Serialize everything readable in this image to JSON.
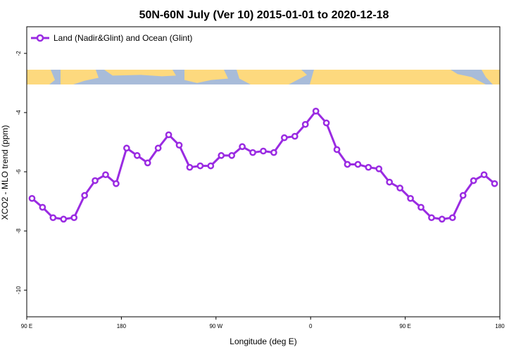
{
  "chart_data": {
    "type": "line",
    "title": "50N-60N July (Ver 10)   2015-01-01 to 2020-12-18",
    "xlabel": "Longitude (deg E)",
    "ylabel": "XCO2 - MLO trend (ppm)",
    "x_ticks": [
      {
        "value": 90,
        "label": "90 E"
      },
      {
        "value": 180,
        "label": "180"
      },
      {
        "value": 270,
        "label": "90 W"
      },
      {
        "value": 360,
        "label": "0"
      },
      {
        "value": 450,
        "label": "90 E"
      },
      {
        "value": 540,
        "label": "180"
      }
    ],
    "y_ticks": [
      {
        "value": -2,
        "label": "-2"
      },
      {
        "value": -4,
        "label": "-4"
      },
      {
        "value": -6,
        "label": "-6"
      },
      {
        "value": -8,
        "label": "-8"
      },
      {
        "value": -10,
        "label": "-10"
      }
    ],
    "xlim": [
      90,
      540
    ],
    "ylim": [
      -10.9,
      -1.1
    ],
    "grid": false,
    "legend_position": "top-left",
    "map_strip": {
      "y_top": -2.55,
      "y_bottom": -3.05,
      "ocean_color": "#a8bcd9",
      "land_color": "#fdd97e"
    },
    "series": [
      {
        "name": "Land (Nadir&Glint) and Ocean (Glint)",
        "color": "#9a2be2",
        "x": [
          95,
          105,
          115,
          125,
          135,
          145,
          155,
          165,
          175,
          185,
          195,
          205,
          215,
          225,
          235,
          245,
          255,
          265,
          275,
          285,
          295,
          305,
          315,
          325,
          335,
          345,
          355,
          365,
          375,
          385,
          395,
          405,
          415,
          425,
          435,
          445,
          455,
          465,
          475,
          485,
          495,
          505,
          515,
          525,
          535
        ],
        "y": [
          -6.9,
          -7.2,
          -7.55,
          -7.6,
          -7.55,
          -6.8,
          -6.3,
          -6.1,
          -6.4,
          -5.2,
          -5.45,
          -5.7,
          -5.2,
          -4.75,
          -5.1,
          -5.85,
          -5.8,
          -5.8,
          -5.45,
          -5.45,
          -5.15,
          -5.35,
          -5.3,
          -5.35,
          -4.85,
          -4.8,
          -4.4,
          -3.95,
          -4.35,
          -5.25,
          -5.75,
          -5.75,
          -5.85,
          -5.9,
          -6.35,
          -6.55,
          -6.9,
          -7.2,
          -7.55,
          -7.6,
          -7.55,
          -6.8,
          -6.3,
          -6.1,
          -6.4
        ]
      }
    ]
  }
}
